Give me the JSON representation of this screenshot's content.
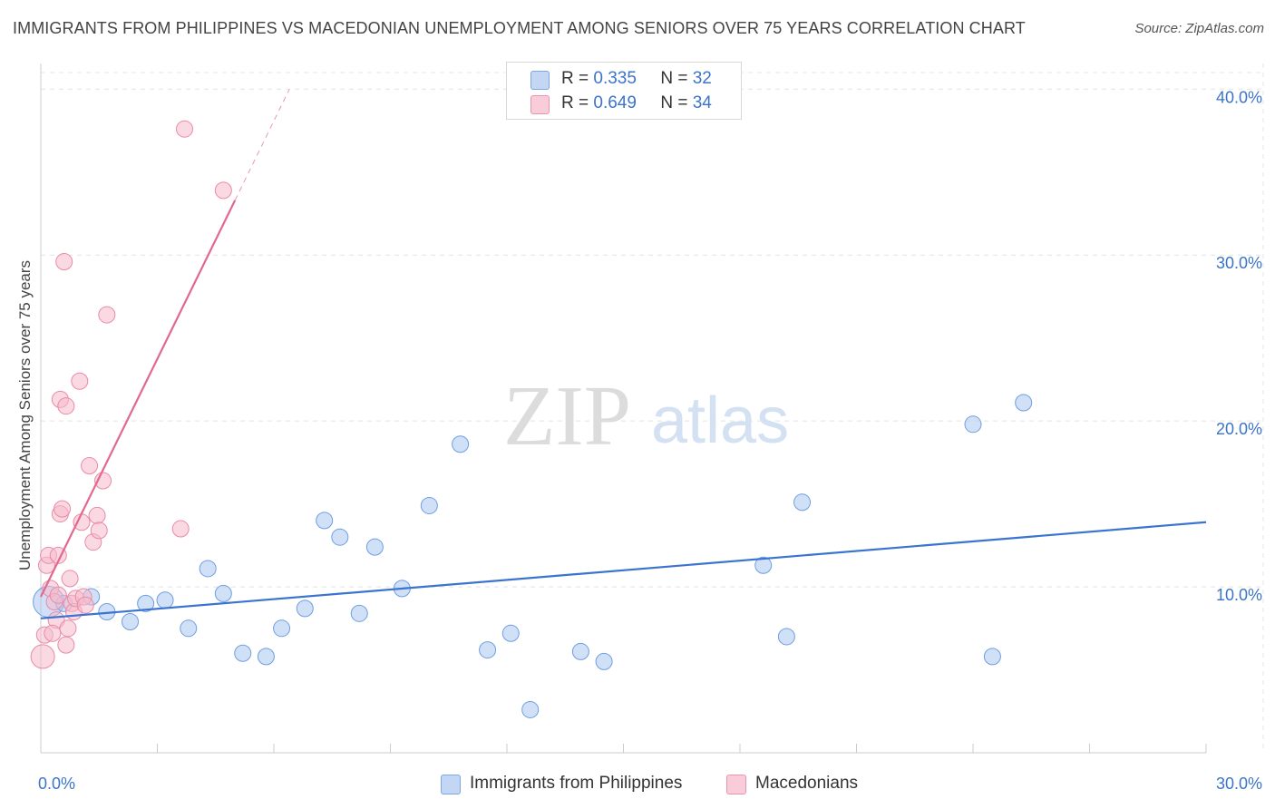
{
  "chart_data": {
    "type": "scatter",
    "title": "IMMIGRANTS FROM PHILIPPINES VS MACEDONIAN UNEMPLOYMENT AMONG SENIORS OVER 75 YEARS CORRELATION CHART",
    "source": "Source: ZipAtlas.com",
    "watermark": {
      "zip": "ZIP",
      "atlas": "atlas"
    },
    "xlabel": "",
    "ylabel": "Unemployment Among Seniors over 75 years",
    "xlim": [
      0,
      30
    ],
    "ylim": [
      0,
      41
    ],
    "x_tick_labels": [
      {
        "value": 0,
        "label": "0.0%"
      },
      {
        "value": 30,
        "label": "30.0%"
      }
    ],
    "y_tick_labels": [
      {
        "value": 10,
        "label": "10.0%"
      },
      {
        "value": 20,
        "label": "20.0%"
      },
      {
        "value": 30,
        "label": "30.0%"
      },
      {
        "value": 40,
        "label": "40.0%"
      }
    ],
    "grid": true,
    "legend_position": "top-center",
    "series": [
      {
        "name": "Immigrants from Philippines",
        "r_label": "R =",
        "r_value": "0.335",
        "n_label": "N =",
        "n_value": "32",
        "fill_color": "#a9c6f0",
        "stroke_color": "#6f9ee0",
        "line_color": "#3b74d0",
        "trend": {
          "x": [
            0,
            30
          ],
          "y": [
            8.1,
            13.9
          ]
        },
        "points": [
          {
            "x": 0.2,
            "y": 9.1,
            "r": 17
          },
          {
            "x": 1.3,
            "y": 9.4,
            "r": 9
          },
          {
            "x": 1.7,
            "y": 8.5,
            "r": 9
          },
          {
            "x": 2.3,
            "y": 7.9,
            "r": 9
          },
          {
            "x": 2.7,
            "y": 9.0,
            "r": 9
          },
          {
            "x": 3.2,
            "y": 9.2,
            "r": 9
          },
          {
            "x": 3.8,
            "y": 7.5,
            "r": 9
          },
          {
            "x": 4.3,
            "y": 11.1,
            "r": 9
          },
          {
            "x": 4.7,
            "y": 9.6,
            "r": 9
          },
          {
            "x": 5.2,
            "y": 6.0,
            "r": 9
          },
          {
            "x": 5.8,
            "y": 5.8,
            "r": 9
          },
          {
            "x": 6.2,
            "y": 7.5,
            "r": 9
          },
          {
            "x": 6.8,
            "y": 8.7,
            "r": 9
          },
          {
            "x": 7.3,
            "y": 14.0,
            "r": 9
          },
          {
            "x": 7.7,
            "y": 13.0,
            "r": 9
          },
          {
            "x": 8.2,
            "y": 8.4,
            "r": 9
          },
          {
            "x": 8.6,
            "y": 12.4,
            "r": 9
          },
          {
            "x": 9.3,
            "y": 9.9,
            "r": 9
          },
          {
            "x": 10.0,
            "y": 14.9,
            "r": 9
          },
          {
            "x": 10.8,
            "y": 18.6,
            "r": 9
          },
          {
            "x": 11.5,
            "y": 6.2,
            "r": 9
          },
          {
            "x": 12.1,
            "y": 7.2,
            "r": 9
          },
          {
            "x": 12.6,
            "y": 2.6,
            "r": 9
          },
          {
            "x": 13.9,
            "y": 6.1,
            "r": 9
          },
          {
            "x": 14.5,
            "y": 5.5,
            "r": 9
          },
          {
            "x": 18.6,
            "y": 11.3,
            "r": 9
          },
          {
            "x": 19.6,
            "y": 15.1,
            "r": 9
          },
          {
            "x": 19.2,
            "y": 7.0,
            "r": 9
          },
          {
            "x": 24.0,
            "y": 19.8,
            "r": 9
          },
          {
            "x": 24.5,
            "y": 5.8,
            "r": 9
          },
          {
            "x": 25.3,
            "y": 21.1,
            "r": 9
          },
          {
            "x": 0.6,
            "y": 9.0,
            "r": 9
          }
        ]
      },
      {
        "name": "Macedonians",
        "r_label": "R =",
        "r_value": "0.649",
        "n_label": "N =",
        "n_value": "34",
        "fill_color": "#f6b9cb",
        "stroke_color": "#e98aa8",
        "line_color": "#e2688f",
        "trend": {
          "x": [
            0,
            5.0
          ],
          "y": [
            9.4,
            33.3
          ]
        },
        "trend_extension": {
          "x": [
            5.0,
            6.4
          ],
          "y": [
            33.3,
            40.0
          ]
        },
        "points": [
          {
            "x": 0.05,
            "y": 5.8,
            "r": 13
          },
          {
            "x": 0.1,
            "y": 7.1,
            "r": 9
          },
          {
            "x": 0.15,
            "y": 11.3,
            "r": 9
          },
          {
            "x": 0.2,
            "y": 11.9,
            "r": 9
          },
          {
            "x": 0.25,
            "y": 9.9,
            "r": 9
          },
          {
            "x": 0.35,
            "y": 9.1,
            "r": 9
          },
          {
            "x": 0.4,
            "y": 8.0,
            "r": 9
          },
          {
            "x": 0.45,
            "y": 11.9,
            "r": 9
          },
          {
            "x": 0.5,
            "y": 14.4,
            "r": 9
          },
          {
            "x": 0.5,
            "y": 21.3,
            "r": 9
          },
          {
            "x": 0.55,
            "y": 14.7,
            "r": 9
          },
          {
            "x": 0.6,
            "y": 29.6,
            "r": 9
          },
          {
            "x": 0.65,
            "y": 6.5,
            "r": 9
          },
          {
            "x": 0.65,
            "y": 20.9,
            "r": 9
          },
          {
            "x": 0.7,
            "y": 7.5,
            "r": 9
          },
          {
            "x": 0.75,
            "y": 10.5,
            "r": 9
          },
          {
            "x": 0.8,
            "y": 9.0,
            "r": 9
          },
          {
            "x": 0.85,
            "y": 8.5,
            "r": 9
          },
          {
            "x": 0.9,
            "y": 9.3,
            "r": 9
          },
          {
            "x": 1.0,
            "y": 22.4,
            "r": 9
          },
          {
            "x": 1.05,
            "y": 13.9,
            "r": 9
          },
          {
            "x": 1.1,
            "y": 9.4,
            "r": 9
          },
          {
            "x": 1.15,
            "y": 8.9,
            "r": 9
          },
          {
            "x": 1.25,
            "y": 17.3,
            "r": 9
          },
          {
            "x": 1.35,
            "y": 12.7,
            "r": 9
          },
          {
            "x": 1.45,
            "y": 14.3,
            "r": 9
          },
          {
            "x": 1.5,
            "y": 13.4,
            "r": 9
          },
          {
            "x": 1.6,
            "y": 16.4,
            "r": 9
          },
          {
            "x": 1.7,
            "y": 26.4,
            "r": 9
          },
          {
            "x": 3.6,
            "y": 13.5,
            "r": 9
          },
          {
            "x": 3.7,
            "y": 37.6,
            "r": 9
          },
          {
            "x": 4.7,
            "y": 33.9,
            "r": 9
          },
          {
            "x": 0.3,
            "y": 7.2,
            "r": 9
          },
          {
            "x": 0.45,
            "y": 9.5,
            "r": 9
          }
        ]
      }
    ]
  }
}
